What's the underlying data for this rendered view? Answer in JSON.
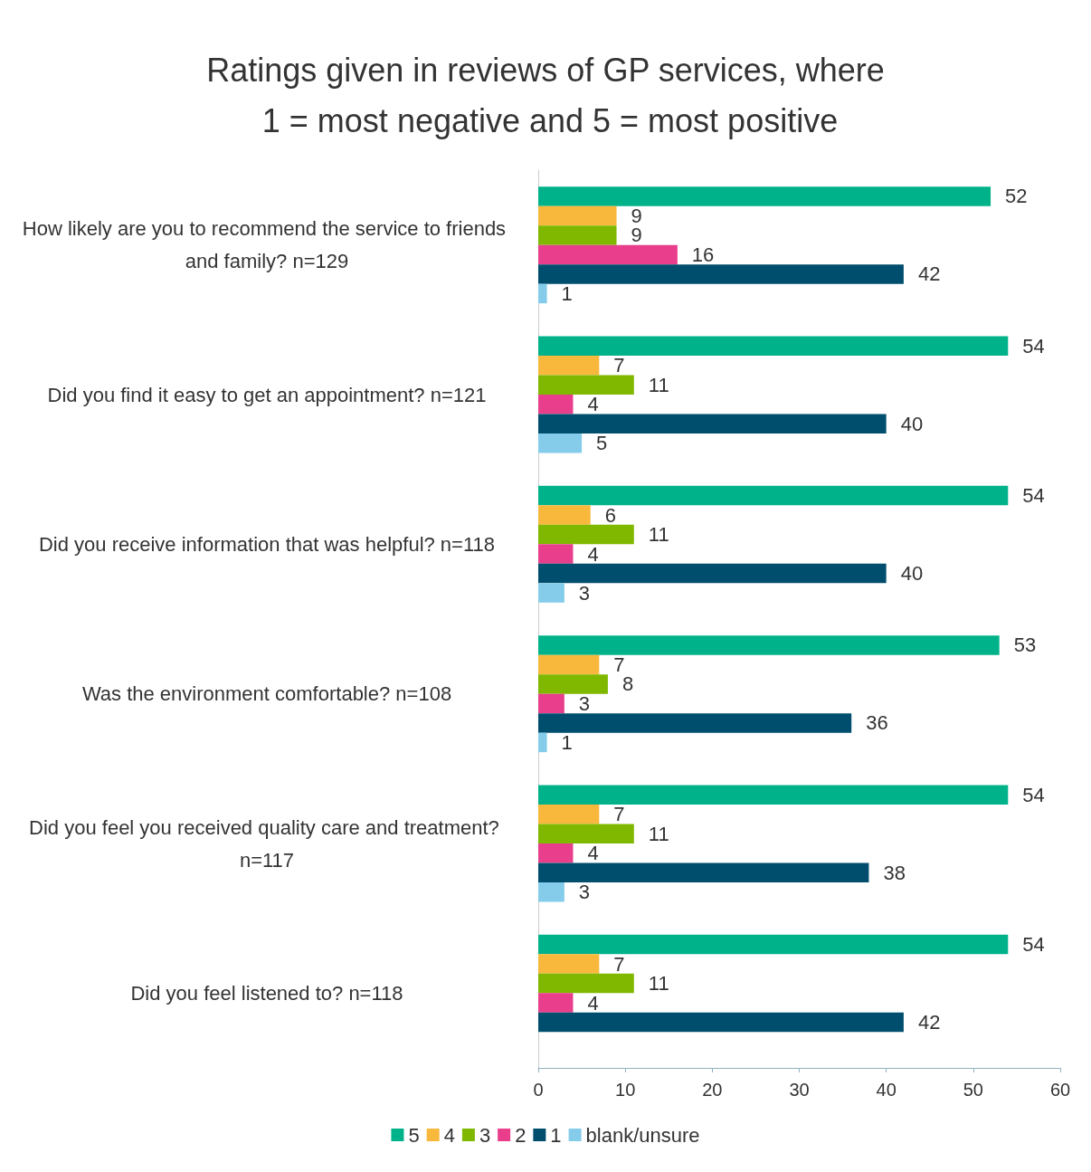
{
  "chart_data": {
    "type": "bar",
    "orientation": "horizontal",
    "title": "Ratings given in reviews of GP services, where 1 = most negative and 5 = most positive",
    "categories": [
      "How likely are you to recommend the service to friends and family? n=129",
      "Did you find it easy to get an appointment? n=121",
      "Did you receive information that was helpful? n=118",
      "Was the environment comfortable? n=108",
      "Did you feel you received quality care and treatment? n=117",
      "Did you feel listened to? n=118"
    ],
    "series": [
      {
        "name": "5",
        "color": "#00b28a",
        "values": [
          52,
          54,
          54,
          53,
          54,
          54
        ]
      },
      {
        "name": "4",
        "color": "#f8b83c",
        "values": [
          9,
          7,
          6,
          7,
          7,
          7
        ]
      },
      {
        "name": "3",
        "color": "#80b800",
        "values": [
          9,
          11,
          11,
          8,
          11,
          11
        ]
      },
      {
        "name": "2",
        "color": "#e83e8c",
        "values": [
          16,
          4,
          4,
          3,
          4,
          4
        ]
      },
      {
        "name": "1",
        "color": "#004e6e",
        "values": [
          42,
          40,
          40,
          36,
          38,
          42
        ]
      },
      {
        "name": "blank/unsure",
        "color": "#85ccea",
        "values": [
          1,
          5,
          3,
          1,
          3,
          null
        ]
      }
    ],
    "xlim": [
      0,
      60
    ],
    "xticks": [
      0,
      10,
      20,
      30,
      40,
      50,
      60
    ],
    "grid": false,
    "legend": "bottom",
    "data_labels": true
  }
}
